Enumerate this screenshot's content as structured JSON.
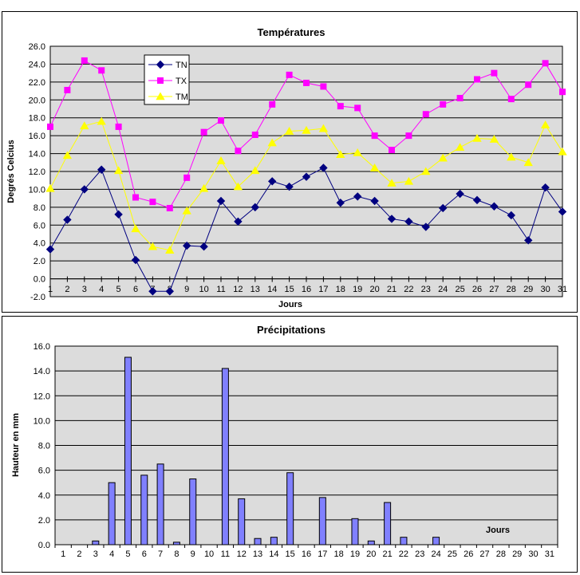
{
  "page": {
    "background": "#FFFFFF",
    "text_color": "#000000"
  },
  "chart_data": [
    {
      "type": "line",
      "title": "Températures",
      "xlabel": "Jours",
      "ylabel": "Degrés Celcius",
      "ylim": [
        -2.0,
        26.0
      ],
      "ytick_step": 2.0,
      "y_tick_labels": [
        "26.0",
        "24.0",
        "22.0",
        "20.0",
        "18.0",
        "16.0",
        "14.0",
        "12.0",
        "10.0",
        "8.0",
        "6.0",
        "4.0",
        "2.0",
        "0.0",
        "-2.0"
      ],
      "categories": [
        1,
        2,
        3,
        4,
        5,
        6,
        7,
        8,
        9,
        10,
        11,
        12,
        13,
        14,
        15,
        16,
        17,
        18,
        19,
        20,
        21,
        22,
        23,
        24,
        25,
        26,
        27,
        28,
        29,
        30,
        31
      ],
      "grid": true,
      "plot_bg": "#DCDCDC",
      "legend_position": "inside-top-center",
      "legend_bg": "#FFFFFF",
      "series": [
        {
          "name": "TN",
          "color": "#000080",
          "marker": "diamond",
          "values": [
            3.3,
            6.6,
            10.0,
            12.2,
            7.2,
            2.1,
            -1.4,
            -1.4,
            3.7,
            3.6,
            8.7,
            6.4,
            8.0,
            10.9,
            10.3,
            11.4,
            12.4,
            8.5,
            9.2,
            8.7,
            6.7,
            6.4,
            5.8,
            7.9,
            9.5,
            8.8,
            8.1,
            7.1,
            4.3,
            10.2,
            7.5
          ]
        },
        {
          "name": "TX",
          "color": "#FF00FF",
          "marker": "square",
          "values": [
            17.0,
            21.1,
            24.4,
            23.3,
            17.0,
            9.1,
            8.6,
            7.9,
            11.3,
            16.4,
            17.7,
            14.3,
            16.1,
            19.5,
            22.8,
            21.9,
            21.5,
            19.3,
            19.1,
            16.0,
            14.4,
            16.0,
            18.4,
            19.5,
            20.2,
            22.3,
            23.0,
            20.1,
            21.7,
            24.1,
            20.9
          ]
        },
        {
          "name": "TM",
          "color": "#FFFF00",
          "marker": "triangle",
          "values": [
            10.1,
            13.8,
            17.1,
            17.6,
            12.1,
            5.6,
            3.6,
            3.2,
            7.6,
            10.1,
            13.2,
            10.3,
            12.1,
            15.2,
            16.5,
            16.6,
            16.8,
            13.9,
            14.1,
            12.4,
            10.7,
            10.9,
            12.0,
            13.5,
            14.7,
            15.7,
            15.6,
            13.6,
            13.0,
            17.2,
            14.2
          ]
        }
      ]
    },
    {
      "type": "bar",
      "title": "Précipitations",
      "xlabel": "Jours",
      "ylabel": "Hauteur en mm",
      "ylim": [
        0.0,
        16.0
      ],
      "ytick_step": 2.0,
      "y_tick_labels": [
        "16.0",
        "14.0",
        "12.0",
        "10.0",
        "8.0",
        "6.0",
        "4.0",
        "2.0",
        "0.0"
      ],
      "categories": [
        1,
        2,
        3,
        4,
        5,
        6,
        7,
        8,
        9,
        10,
        11,
        12,
        13,
        14,
        15,
        16,
        17,
        18,
        19,
        20,
        21,
        22,
        23,
        24,
        25,
        26,
        27,
        28,
        29,
        30,
        31
      ],
      "grid": true,
      "plot_bg": "#DCDCDC",
      "bar_color": "#8080FF",
      "bar_border": "#000000",
      "values": [
        0,
        0,
        0.3,
        5.0,
        15.1,
        5.6,
        6.5,
        0.2,
        5.3,
        0,
        14.2,
        3.7,
        0.5,
        0.6,
        5.8,
        0,
        3.8,
        0,
        2.1,
        0.3,
        3.4,
        0.6,
        0,
        0.6,
        0,
        0,
        0,
        0,
        0,
        0,
        0
      ]
    }
  ]
}
